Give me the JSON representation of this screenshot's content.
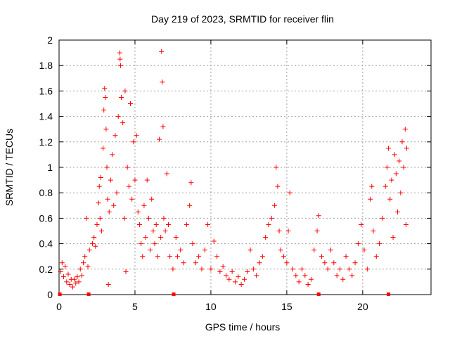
{
  "chart_data": {
    "type": "scatter",
    "title": "Day 219 of 2023, SRMTID for receiver flin",
    "xlabel": "GPS time / hours",
    "ylabel": "SRMTID / TECUs",
    "xlim": [
      0,
      24.5
    ],
    "ylim": [
      0,
      2
    ],
    "xticks": [
      0,
      5,
      10,
      15,
      20
    ],
    "xtick_labels": [
      "0",
      "5",
      "10",
      "15",
      "20"
    ],
    "yticks": [
      0,
      0.2,
      0.4,
      0.6,
      0.8,
      1,
      1.2,
      1.4,
      1.6,
      1.8,
      2
    ],
    "ytick_labels": [
      "0",
      "0.2",
      "0.4",
      "0.6",
      "0.8",
      "1",
      "1.2",
      "1.4",
      "1.6",
      "1.8",
      "2"
    ],
    "grid": true,
    "marker": "+",
    "color": "#ff0000",
    "baseline_markers_x": [
      0.05,
      1.95,
      7.55,
      17.1,
      21.7
    ],
    "series": [
      {
        "name": "SRMTID",
        "points": [
          [
            0.1,
            0.18
          ],
          [
            0.2,
            0.25
          ],
          [
            0.3,
            0.14
          ],
          [
            0.4,
            0.22
          ],
          [
            0.5,
            0.1
          ],
          [
            0.6,
            0.16
          ],
          [
            0.7,
            0.08
          ],
          [
            0.8,
            0.12
          ],
          [
            0.9,
            0.06
          ],
          [
            1.0,
            0.12
          ],
          [
            1.1,
            0.09
          ],
          [
            1.2,
            0.14
          ],
          [
            1.3,
            0.1
          ],
          [
            1.4,
            0.2
          ],
          [
            1.5,
            0.15
          ],
          [
            1.6,
            0.25
          ],
          [
            1.7,
            0.3
          ],
          [
            1.8,
            0.6
          ],
          [
            1.9,
            0.22
          ],
          [
            2.0,
            0.35
          ],
          [
            2.2,
            0.4
          ],
          [
            2.3,
            0.45
          ],
          [
            2.4,
            0.38
          ],
          [
            2.5,
            0.55
          ],
          [
            2.6,
            0.72
          ],
          [
            2.65,
            0.85
          ],
          [
            2.7,
            0.6
          ],
          [
            2.75,
            0.92
          ],
          [
            2.8,
            0.5
          ],
          [
            2.9,
            1.15
          ],
          [
            2.95,
            1.45
          ],
          [
            3.0,
            1.62
          ],
          [
            3.05,
            1.55
          ],
          [
            3.1,
            1.3
          ],
          [
            3.15,
            1.0
          ],
          [
            3.2,
            0.75
          ],
          [
            3.25,
            0.08
          ],
          [
            3.3,
            0.65
          ],
          [
            3.4,
            0.9
          ],
          [
            3.5,
            1.1
          ],
          [
            3.6,
            0.7
          ],
          [
            3.7,
            1.25
          ],
          [
            3.8,
            0.8
          ],
          [
            3.9,
            1.4
          ],
          [
            4.0,
            1.9
          ],
          [
            4.02,
            1.85
          ],
          [
            4.05,
            1.8
          ],
          [
            4.1,
            1.55
          ],
          [
            4.2,
            1.35
          ],
          [
            4.3,
            0.6
          ],
          [
            4.35,
            1.6
          ],
          [
            4.4,
            0.18
          ],
          [
            4.5,
            1.0
          ],
          [
            4.6,
            0.85
          ],
          [
            4.7,
            1.5
          ],
          [
            4.8,
            0.75
          ],
          [
            4.9,
            1.2
          ],
          [
            5.0,
            0.9
          ],
          [
            5.1,
            1.25
          ],
          [
            5.2,
            0.65
          ],
          [
            5.3,
            0.55
          ],
          [
            5.4,
            0.4
          ],
          [
            5.5,
            0.3
          ],
          [
            5.6,
            0.7
          ],
          [
            5.7,
            0.45
          ],
          [
            5.8,
            0.9
          ],
          [
            5.9,
            0.6
          ],
          [
            6.0,
            0.35
          ],
          [
            6.1,
            0.75
          ],
          [
            6.2,
            0.5
          ],
          [
            6.3,
            0.4
          ],
          [
            6.4,
            0.55
          ],
          [
            6.5,
            0.3
          ],
          [
            6.6,
            1.22
          ],
          [
            6.7,
            0.45
          ],
          [
            6.75,
            1.91
          ],
          [
            6.8,
            1.67
          ],
          [
            6.85,
            1.32
          ],
          [
            6.9,
            0.6
          ],
          [
            7.0,
            0.5
          ],
          [
            7.1,
            0.95
          ],
          [
            7.2,
            0.55
          ],
          [
            7.3,
            0.3
          ],
          [
            7.5,
            0.2
          ],
          [
            7.7,
            0.45
          ],
          [
            7.8,
            0.3
          ],
          [
            8.0,
            0.35
          ],
          [
            8.2,
            0.25
          ],
          [
            8.4,
            0.55
          ],
          [
            8.6,
            0.7
          ],
          [
            8.7,
            0.88
          ],
          [
            8.8,
            0.4
          ],
          [
            9.0,
            0.25
          ],
          [
            9.2,
            0.3
          ],
          [
            9.4,
            0.2
          ],
          [
            9.6,
            0.35
          ],
          [
            9.8,
            0.55
          ],
          [
            10.0,
            0.2
          ],
          [
            10.2,
            0.42
          ],
          [
            10.4,
            0.3
          ],
          [
            10.6,
            0.18
          ],
          [
            10.8,
            0.22
          ],
          [
            11.0,
            0.15
          ],
          [
            11.2,
            0.12
          ],
          [
            11.4,
            0.18
          ],
          [
            11.6,
            0.1
          ],
          [
            11.8,
            0.14
          ],
          [
            12.0,
            0.08
          ],
          [
            12.2,
            0.12
          ],
          [
            12.4,
            0.18
          ],
          [
            12.6,
            0.35
          ],
          [
            12.8,
            0.2
          ],
          [
            13.0,
            0.15
          ],
          [
            13.2,
            0.25
          ],
          [
            13.4,
            0.3
          ],
          [
            13.6,
            0.45
          ],
          [
            13.8,
            0.55
          ],
          [
            14.0,
            0.6
          ],
          [
            14.2,
            0.7
          ],
          [
            14.3,
            1.0
          ],
          [
            14.4,
            0.85
          ],
          [
            14.5,
            0.5
          ],
          [
            14.6,
            0.35
          ],
          [
            14.8,
            0.3
          ],
          [
            15.0,
            0.25
          ],
          [
            15.1,
            0.5
          ],
          [
            15.2,
            0.8
          ],
          [
            15.4,
            0.2
          ],
          [
            15.6,
            0.15
          ],
          [
            15.8,
            0.1
          ],
          [
            16.0,
            0.2
          ],
          [
            16.2,
            0.15
          ],
          [
            16.4,
            0.08
          ],
          [
            16.6,
            0.12
          ],
          [
            16.8,
            0.35
          ],
          [
            17.0,
            0.5
          ],
          [
            17.1,
            0.62
          ],
          [
            17.3,
            0.3
          ],
          [
            17.5,
            0.25
          ],
          [
            17.7,
            0.2
          ],
          [
            17.9,
            0.35
          ],
          [
            18.1,
            0.25
          ],
          [
            18.3,
            0.15
          ],
          [
            18.5,
            0.2
          ],
          [
            18.7,
            0.12
          ],
          [
            18.9,
            0.3
          ],
          [
            19.1,
            0.2
          ],
          [
            19.3,
            0.15
          ],
          [
            19.5,
            0.25
          ],
          [
            19.7,
            0.4
          ],
          [
            19.9,
            0.55
          ],
          [
            20.1,
            0.35
          ],
          [
            20.3,
            0.2
          ],
          [
            20.5,
            0.75
          ],
          [
            20.6,
            0.85
          ],
          [
            20.7,
            0.5
          ],
          [
            20.9,
            0.3
          ],
          [
            21.1,
            0.4
          ],
          [
            21.3,
            0.6
          ],
          [
            21.5,
            0.85
          ],
          [
            21.6,
            1.0
          ],
          [
            21.7,
            1.15
          ],
          [
            21.8,
            0.75
          ],
          [
            21.9,
            0.9
          ],
          [
            22.0,
            0.45
          ],
          [
            22.1,
            1.1
          ],
          [
            22.2,
            0.95
          ],
          [
            22.3,
            0.65
          ],
          [
            22.4,
            1.05
          ],
          [
            22.5,
            0.8
          ],
          [
            22.6,
            1.2
          ],
          [
            22.7,
            1.0
          ],
          [
            22.8,
            1.3
          ],
          [
            22.85,
            0.55
          ],
          [
            22.9,
            1.15
          ]
        ]
      }
    ]
  }
}
